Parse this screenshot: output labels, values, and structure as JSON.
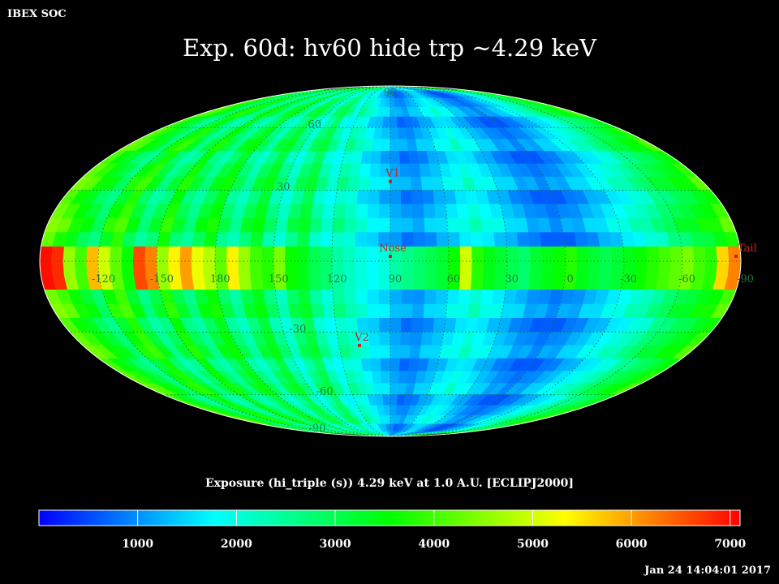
{
  "header": {
    "left_label": "IBEX SOC",
    "timestamp": "Jan 24 14:04:01 2017"
  },
  "title": "Exp.   60d: hv60 hide trp ~4.29 keV",
  "colorbar": {
    "label": "Exposure (hi_triple (s))  4.29 keV at 1.0 A.U. [ECLIPJ2000]",
    "tick_labels": [
      "1000",
      "2000",
      "3000",
      "4000",
      "5000",
      "6000",
      "7000"
    ],
    "tick_values": [
      1000,
      2000,
      3000,
      4000,
      5000,
      6000,
      7000
    ],
    "range": [
      0,
      7100
    ],
    "colormap": [
      "#0000ff",
      "#00ffff",
      "#00ff00",
      "#ffff00",
      "#ff0000"
    ]
  },
  "chart_data": {
    "type": "heatmap",
    "projection": "mollweide",
    "coordinate_frame": "ECLIPJ2000",
    "units": "s",
    "longitude_center": 90,
    "longitude_direction": "increasing-left",
    "graticule": true,
    "latitude_labels": [
      "90",
      "60",
      "30",
      "-30",
      "-60",
      "-90"
    ],
    "latitude_label_values": [
      90,
      60,
      30,
      -30,
      -60,
      -90
    ],
    "equator_longitude_labels": [
      "60",
      "30",
      "0",
      "-30",
      "-60",
      "-90",
      "-120",
      "-150",
      "180",
      "150",
      "120",
      "90"
    ],
    "equator_longitude_values": [
      60,
      30,
      0,
      -30,
      -60,
      -90,
      -120,
      -150,
      180,
      150,
      120,
      90
    ],
    "markers": [
      {
        "name": "V1",
        "lon": 90,
        "lat": 34,
        "color": "#d02020"
      },
      {
        "name": "Nose",
        "lon": 90,
        "lat": 2,
        "color": "#d02020"
      },
      {
        "name": "V2",
        "lon": 108,
        "lat": -36,
        "color": "#d02020"
      },
      {
        "name": "Tail",
        "lon": 270,
        "lat": 4,
        "color": "#d02020"
      }
    ],
    "grid": {
      "lon_bin_deg": 6,
      "lat_bin_deg": 6,
      "note_rows": "row 0 = lat 84..90, rows decrease to lat -90",
      "col_start_lon": 270,
      "equator_band_lat": [
        -12,
        6
      ],
      "column_profile_s": [
        4400,
        4000,
        3600,
        3200,
        2800,
        3600,
        4000,
        3200,
        2600,
        3000,
        3800,
        3000,
        2600,
        3200,
        3600,
        2800,
        2400,
        3000,
        3400,
        2600,
        2200,
        2800,
        3200,
        2400,
        2000,
        2400,
        2200,
        1800,
        1600,
        1400,
        1200,
        1000,
        1000,
        1200,
        1400,
        1600,
        1800,
        2000,
        1800,
        1600,
        1400,
        1200,
        1000,
        900,
        800,
        900,
        1000,
        1200,
        1400,
        1600,
        1800,
        2000,
        2200,
        2400,
        2800,
        3000,
        3200,
        3400,
        3600,
        4000
      ],
      "equator_band_s": [
        7000,
        6800,
        4600,
        4000,
        5800,
        5000,
        4200,
        3600,
        6600,
        6200,
        4600,
        5400,
        6000,
        5200,
        4800,
        4200,
        5400,
        4600,
        4000,
        3800,
        4400,
        3600,
        3400,
        3000,
        2800,
        2400,
        2200,
        2000,
        1800,
        2000,
        2400,
        2600,
        2800,
        3000,
        3200,
        3600,
        5000,
        3800,
        3400,
        3200,
        3000,
        2800,
        3200,
        3400,
        3600,
        3800,
        3400,
        3200,
        3000,
        3200,
        3400,
        3600,
        3800,
        4000,
        4200,
        4400,
        4000,
        3800,
        5600,
        6200
      ]
    }
  }
}
